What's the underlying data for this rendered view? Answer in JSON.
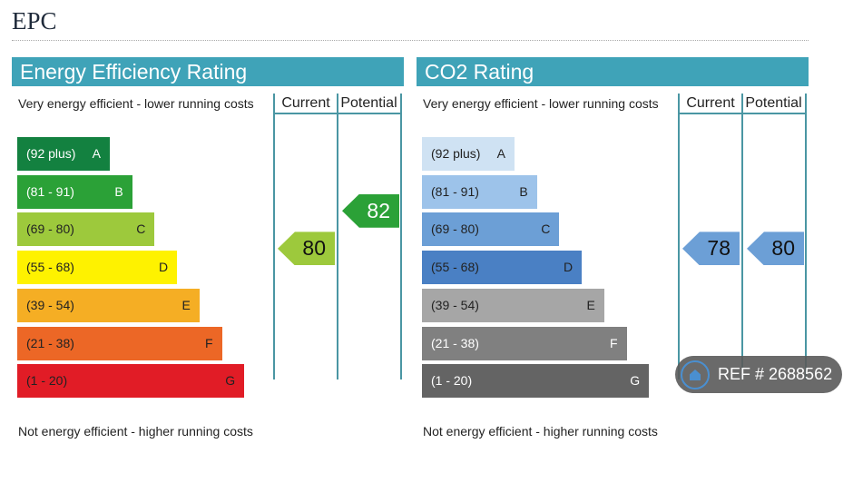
{
  "page": {
    "title": "EPC",
    "ref": "REF # 2688562"
  },
  "chart_data": [
    {
      "type": "bar",
      "title": "Energy Efficiency Rating",
      "top_label": "Very energy efficient - lower running costs",
      "bottom_label": "Not energy efficient - higher running costs",
      "columns": [
        "Current",
        "Potential"
      ],
      "bands": [
        {
          "range": "(92 plus)",
          "letter": "A",
          "color": "#138140",
          "text": "#fff"
        },
        {
          "range": "(81 - 91)",
          "letter": "B",
          "color": "#2ba137",
          "text": "#fff"
        },
        {
          "range": "(69 - 80)",
          "letter": "C",
          "color": "#9dc93c",
          "text": "#222"
        },
        {
          "range": "(55 - 68)",
          "letter": "D",
          "color": "#fef200",
          "text": "#222"
        },
        {
          "range": "(39 - 54)",
          "letter": "E",
          "color": "#f5ae24",
          "text": "#222"
        },
        {
          "range": "(21 - 38)",
          "letter": "F",
          "color": "#ec6726",
          "text": "#222"
        },
        {
          "range": "(1 - 20)",
          "letter": "G",
          "color": "#e11c26",
          "text": "#222"
        }
      ],
      "current": {
        "value": "80",
        "band": "C",
        "color": "#9dc93c",
        "text": "#111"
      },
      "potential": {
        "value": "82",
        "band": "B",
        "color": "#2ba137",
        "text": "#fff"
      }
    },
    {
      "type": "bar",
      "title": "CO2 Rating",
      "top_label": "Very energy efficient - lower running costs",
      "bottom_label": "Not energy efficient - higher running costs",
      "columns": [
        "Current",
        "Potential"
      ],
      "bands": [
        {
          "range": "(92 plus)",
          "letter": "A",
          "color": "#cfe2f3",
          "text": "#222"
        },
        {
          "range": "(81 - 91)",
          "letter": "B",
          "color": "#9dc3ea",
          "text": "#222"
        },
        {
          "range": "(69 - 80)",
          "letter": "C",
          "color": "#6c9fd6",
          "text": "#222"
        },
        {
          "range": "(55 - 68)",
          "letter": "D",
          "color": "#4a80c4",
          "text": "#222"
        },
        {
          "range": "(39 - 54)",
          "letter": "E",
          "color": "#a6a6a6",
          "text": "#222"
        },
        {
          "range": "(21 - 38)",
          "letter": "F",
          "color": "#808080",
          "text": "#fff"
        },
        {
          "range": "(1 - 20)",
          "letter": "G",
          "color": "#646464",
          "text": "#fff"
        }
      ],
      "current": {
        "value": "78",
        "band": "C",
        "color": "#6c9fd6",
        "text": "#111"
      },
      "potential": {
        "value": "80",
        "band": "C",
        "color": "#6c9fd6",
        "text": "#111"
      }
    }
  ]
}
